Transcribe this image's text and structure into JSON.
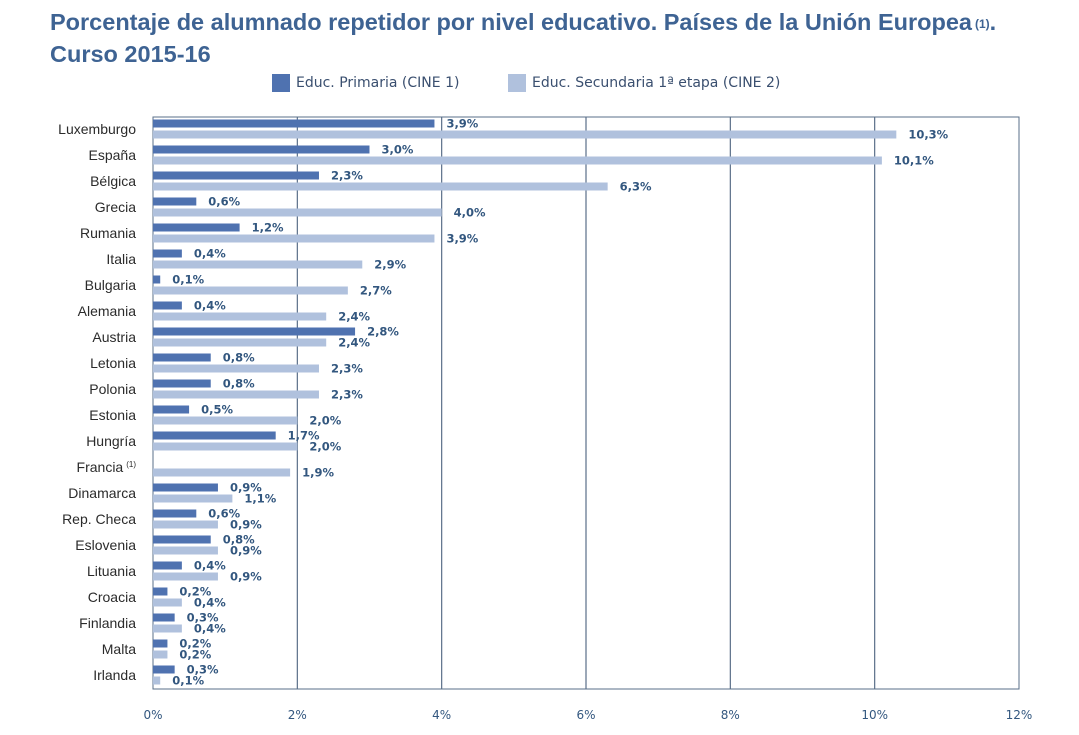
{
  "title": {
    "line1": "Porcentaje de alumnado repetidor por nivel educativo. Países de la Unión Europea",
    "line1_note": "(1)",
    "line1_end": ".",
    "line2": "Curso 2015-16"
  },
  "colors": {
    "primary": "#4f72b0",
    "secondary": "#b0c1dd",
    "grid": "#5a6f88",
    "title": "#3e6393"
  },
  "chart_data": {
    "type": "bar",
    "orientation": "horizontal",
    "title": "Porcentaje de alumnado repetidor por nivel educativo. Países de la Unión Europea (1). Curso 2015-16",
    "categories": [
      "Luxemburgo",
      "España",
      "Bélgica",
      "Grecia",
      "Rumania",
      "Italia",
      "Bulgaria",
      "Alemania",
      "Austria",
      "Letonia",
      "Polonia",
      "Estonia",
      "Hungría",
      "Francia",
      "Dinamarca",
      "Rep. Checa",
      "Eslovenia",
      "Lituania",
      "Croacia",
      "Finlandia",
      "Malta",
      "Irlanda"
    ],
    "category_notes": [
      "",
      "",
      "",
      "",
      "",
      "",
      "",
      "",
      "",
      "",
      "",
      "",
      "",
      "(1)",
      "",
      "",
      "",
      "",
      "",
      "",
      "",
      ""
    ],
    "series": [
      {
        "name": "Educ. Primaria (CINE 1)",
        "values": [
          3.9,
          3.0,
          2.3,
          0.6,
          1.2,
          0.4,
          0.1,
          0.4,
          2.8,
          0.8,
          0.8,
          0.5,
          1.7,
          null,
          0.9,
          0.6,
          0.8,
          0.4,
          0.2,
          0.3,
          0.2,
          0.3
        ],
        "labels": [
          "3,9%",
          "3,0%",
          "2,3%",
          "0,6%",
          "1,2%",
          "0,4%",
          "0,1%",
          "0,4%",
          "2,8%",
          "0,8%",
          "0,8%",
          "0,5%",
          "1,7%",
          "",
          "0,9%",
          "0,6%",
          "0,8%",
          "0,4%",
          "0,2%",
          "0,3%",
          "0,2%",
          "0,3%"
        ]
      },
      {
        "name": "Educ. Secundaria 1ª etapa (CINE 2)",
        "values": [
          10.3,
          10.1,
          6.3,
          4.0,
          3.9,
          2.9,
          2.7,
          2.4,
          2.4,
          2.3,
          2.3,
          2.0,
          2.0,
          1.9,
          1.1,
          0.9,
          0.9,
          0.9,
          0.4,
          0.4,
          0.2,
          0.1
        ],
        "labels": [
          "10,3%",
          "10,1%",
          "6,3%",
          "4,0%",
          "3,9%",
          "2,9%",
          "2,7%",
          "2,4%",
          "2,4%",
          "2,3%",
          "2,3%",
          "2,0%",
          "2,0%",
          "1,9%",
          "1,1%",
          "0,9%",
          "0,9%",
          "0,9%",
          "0,4%",
          "0,4%",
          "0,2%",
          "0,1%"
        ]
      }
    ],
    "xlim": [
      0,
      12
    ],
    "xticks": [
      0,
      2,
      4,
      6,
      8,
      10,
      12
    ],
    "xtick_labels": [
      "0%",
      "2%",
      "4%",
      "6%",
      "8%",
      "10%",
      "12%"
    ],
    "grid": true,
    "legend_position": "top"
  }
}
